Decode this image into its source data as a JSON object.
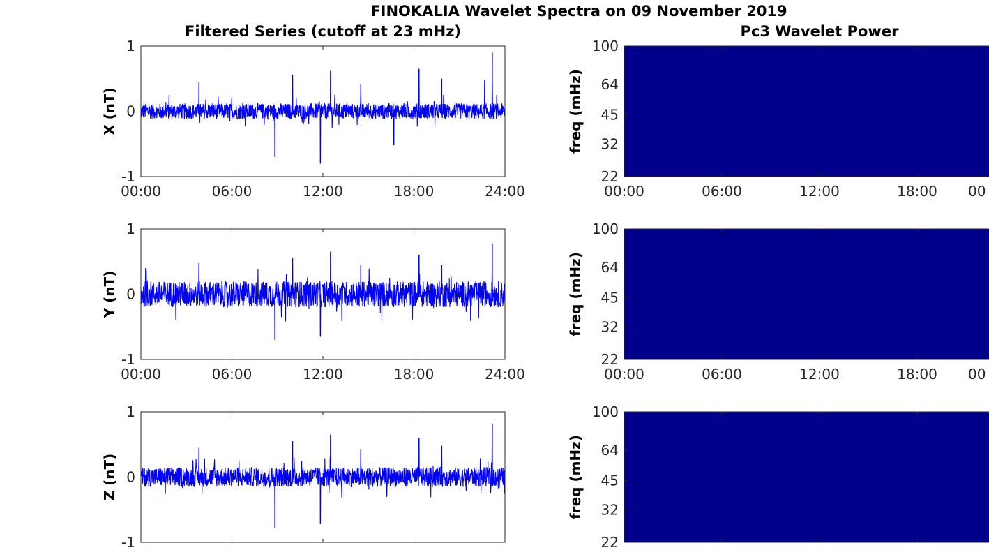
{
  "figure": {
    "title": "FINOKALIA Wavelet Spectra on 09 November 2019",
    "left_column_title": "Filtered Series (cutoff at 23 mHz)",
    "right_column_title": "Pc3 Wavelet Power"
  },
  "chart_data": [
    {
      "type": "line",
      "name": "X filtered series",
      "ylabel": "X (nT)",
      "ylim": [
        -1,
        1
      ],
      "yticks": [
        "-1",
        "0",
        "1"
      ],
      "xticks": [
        "00:00",
        "06:00",
        "12:00",
        "18:00",
        "24:00"
      ],
      "color": "#0000ff",
      "noise_amplitude": 0.12,
      "spikes": [
        {
          "time": "03:50",
          "value": 0.45
        },
        {
          "time": "08:50",
          "value": -0.7
        },
        {
          "time": "10:00",
          "value": 0.56
        },
        {
          "time": "11:50",
          "value": -0.8
        },
        {
          "time": "12:30",
          "value": 0.62
        },
        {
          "time": "14:30",
          "value": 0.42
        },
        {
          "time": "16:40",
          "value": -0.52
        },
        {
          "time": "18:20",
          "value": 0.65
        },
        {
          "time": "19:50",
          "value": 0.5
        },
        {
          "time": "22:40",
          "value": 0.48
        },
        {
          "time": "23:10",
          "value": 0.9
        }
      ]
    },
    {
      "type": "line",
      "name": "Y filtered series",
      "ylabel": "Y (nT)",
      "ylim": [
        -1,
        1
      ],
      "yticks": [
        "-1",
        "0",
        "1"
      ],
      "xticks": [
        "00:00",
        "06:00",
        "12:00",
        "18:00",
        "24:00"
      ],
      "color": "#0000ff",
      "noise_amplitude": 0.2,
      "spikes": [
        {
          "time": "03:50",
          "value": 0.48
        },
        {
          "time": "08:50",
          "value": -0.7
        },
        {
          "time": "10:00",
          "value": 0.55
        },
        {
          "time": "11:50",
          "value": -0.65
        },
        {
          "time": "12:30",
          "value": 0.65
        },
        {
          "time": "14:30",
          "value": 0.45
        },
        {
          "time": "18:20",
          "value": 0.6
        },
        {
          "time": "19:50",
          "value": 0.45
        },
        {
          "time": "23:10",
          "value": 0.78
        }
      ]
    },
    {
      "type": "line",
      "name": "Z filtered series",
      "ylabel": "Z (nT)",
      "ylim": [
        -1,
        1
      ],
      "yticks": [
        "-1",
        "0",
        "1"
      ],
      "xticks": [
        "",
        "",
        "",
        "",
        ""
      ],
      "color": "#0000ff",
      "noise_amplitude": 0.15,
      "spikes": [
        {
          "time": "03:50",
          "value": 0.45
        },
        {
          "time": "08:50",
          "value": -0.78
        },
        {
          "time": "10:00",
          "value": 0.55
        },
        {
          "time": "11:50",
          "value": -0.72
        },
        {
          "time": "12:30",
          "value": 0.65
        },
        {
          "time": "14:30",
          "value": 0.42
        },
        {
          "time": "18:20",
          "value": 0.6
        },
        {
          "time": "19:50",
          "value": 0.48
        },
        {
          "time": "23:10",
          "value": 0.82
        }
      ]
    },
    {
      "type": "heatmap",
      "name": "X wavelet power",
      "ylabel": "freq (mHz)",
      "yticks": [
        "22",
        "32",
        "45",
        "64",
        "100"
      ],
      "yscale": "log",
      "ylim": [
        22,
        100
      ],
      "xticks": [
        "00:00",
        "06:00",
        "12:00",
        "18:00",
        "00"
      ],
      "fill_color": "#00008b"
    },
    {
      "type": "heatmap",
      "name": "Y wavelet power",
      "ylabel": "freq (mHz)",
      "yticks": [
        "22",
        "32",
        "45",
        "64",
        "100"
      ],
      "yscale": "log",
      "ylim": [
        22,
        100
      ],
      "xticks": [
        "00:00",
        "06:00",
        "12:00",
        "18:00",
        "00"
      ],
      "fill_color": "#00008b"
    },
    {
      "type": "heatmap",
      "name": "Z wavelet power",
      "ylabel": "freq (mHz)",
      "yticks": [
        "22",
        "32",
        "45",
        "64",
        "100"
      ],
      "yscale": "log",
      "ylim": [
        22,
        100
      ],
      "xticks": [
        "",
        "",
        "",
        "",
        ""
      ],
      "fill_color": "#00008b"
    }
  ]
}
